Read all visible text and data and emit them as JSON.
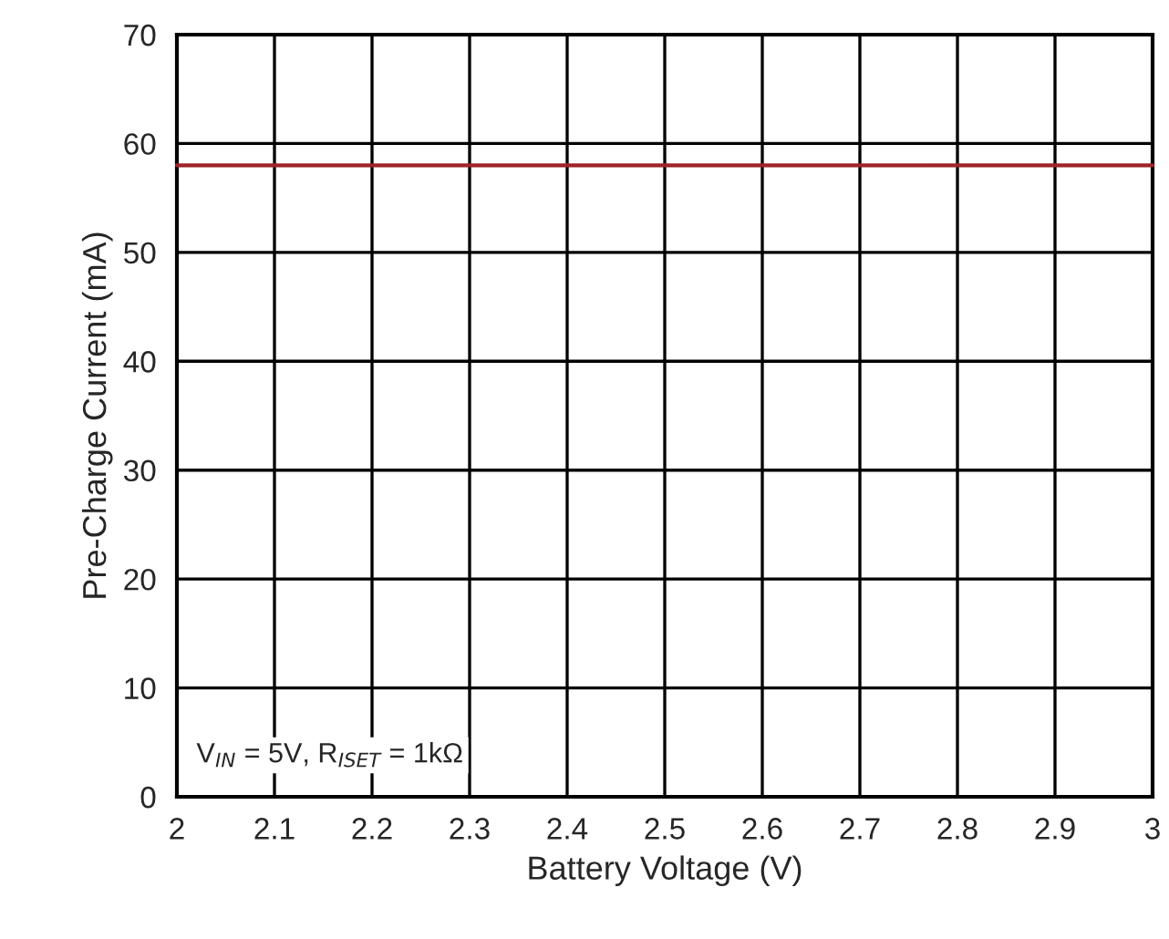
{
  "chart_data": {
    "type": "line",
    "xlabel": "Battery Voltage (V)",
    "ylabel": "Pre-Charge Current (mA)",
    "x": [
      2,
      3
    ],
    "series": [
      {
        "color": "#a0222a",
        "values": [
          58,
          58
        ]
      }
    ],
    "xlim": [
      2,
      3
    ],
    "ylim": [
      0,
      70
    ],
    "xticks": [
      2,
      2.1,
      2.2,
      2.3,
      2.4,
      2.5,
      2.6,
      2.7,
      2.8,
      2.9,
      3
    ],
    "yticks": [
      0,
      10,
      20,
      30,
      40,
      50,
      60,
      70
    ],
    "grid": true,
    "marker": "none",
    "line_style": "solid",
    "annotations": [
      "V$_{IN}$ = 5V, R$_{ISET}$ = 1kΩ"
    ]
  }
}
